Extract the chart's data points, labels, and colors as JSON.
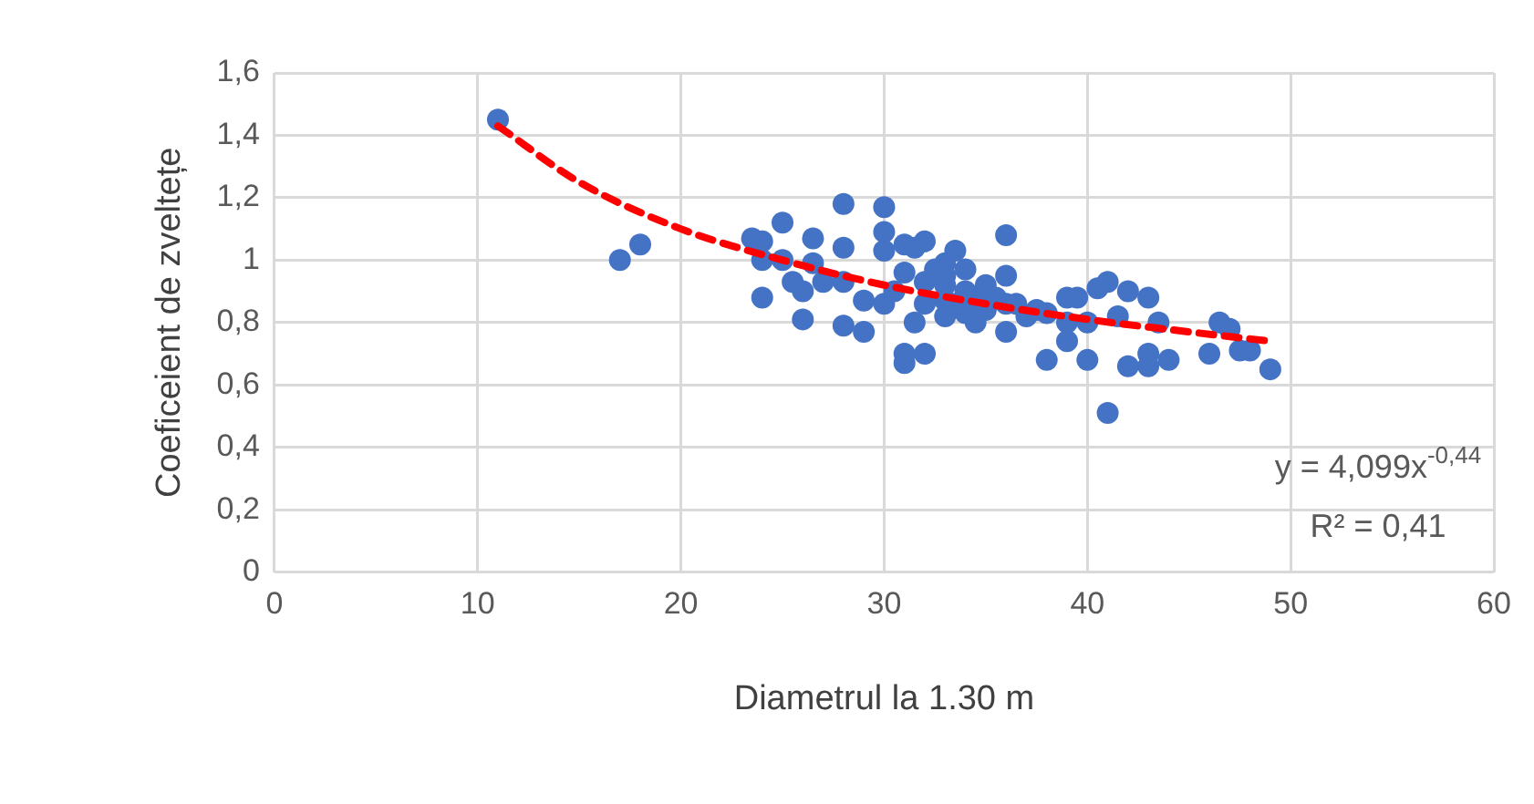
{
  "chart_data": {
    "type": "scatter",
    "xlabel": "Diametrul la 1.30 m",
    "ylabel": "Coeficeient de zveltețe",
    "xlim": [
      0,
      60
    ],
    "xticks": [
      0,
      10,
      20,
      30,
      40,
      50,
      60
    ],
    "ylim": [
      0,
      1.6
    ],
    "yticks": [
      0,
      {
        "value": 0.2,
        "label": "0,2"
      },
      {
        "value": 0.4,
        "label": "0,4"
      },
      {
        "value": 0.6,
        "label": "0,6"
      },
      {
        "value": 0.8,
        "label": "0,8"
      },
      1,
      {
        "value": 1.2,
        "label": "1,2"
      },
      {
        "value": 1.4,
        "label": "1,4"
      },
      {
        "value": 1.6,
        "label": "1,6"
      }
    ],
    "grid": true,
    "marker": "circle",
    "annotations": [
      "y = 4,099x$^{-0,44}$",
      "R² = 0,41"
    ],
    "series": [
      {
        "type": "scatter",
        "color": "#4472c4",
        "x": [
          11,
          17,
          18,
          23.5,
          24,
          24,
          24,
          25,
          25,
          25.5,
          26,
          26,
          26.5,
          26.5,
          27,
          28,
          28,
          28,
          28,
          29,
          29,
          30,
          30,
          30,
          30,
          31,
          31,
          31,
          31,
          31.5,
          32,
          32,
          32,
          32,
          33,
          33,
          33,
          33,
          33.5,
          33.5,
          34,
          34.5,
          34.5,
          36,
          36,
          36,
          36,
          36.5,
          38,
          38,
          39,
          39,
          39,
          39.5,
          40,
          40,
          40.5,
          41,
          41,
          41.5,
          42,
          42,
          43,
          43,
          43,
          43.5,
          44,
          46,
          46.5,
          47,
          47.5,
          48,
          49,
          33,
          34,
          35,
          35,
          34,
          32.5,
          31.5,
          30.5,
          35.5,
          37,
          37.5
        ],
        "values": [
          1.45,
          1.0,
          1.05,
          1.07,
          1.06,
          1.0,
          0.88,
          1.12,
          1.0,
          0.93,
          0.9,
          0.81,
          1.07,
          0.99,
          0.93,
          1.18,
          1.04,
          0.93,
          0.79,
          0.87,
          0.77,
          1.17,
          1.09,
          1.03,
          0.86,
          1.05,
          0.96,
          0.7,
          0.67,
          1.04,
          0.7,
          0.86,
          0.93,
          1.06,
          0.99,
          0.87,
          0.82,
          0.95,
          1.03,
          0.86,
          0.97,
          0.88,
          0.8,
          1.08,
          0.95,
          0.86,
          0.77,
          0.86,
          0.83,
          0.68,
          0.88,
          0.8,
          0.74,
          0.88,
          0.8,
          0.68,
          0.91,
          0.51,
          0.93,
          0.82,
          0.66,
          0.9,
          0.88,
          0.7,
          0.66,
          0.8,
          0.68,
          0.7,
          0.8,
          0.78,
          0.71,
          0.71,
          0.65,
          0.92,
          0.9,
          0.92,
          0.84,
          0.83,
          0.97,
          0.8,
          0.9,
          0.88,
          0.82,
          0.84
        ]
      },
      {
        "type": "line",
        "color": "#ff0000",
        "line_style": "dashed",
        "marker": "none",
        "x": [
          11,
          15,
          20,
          25,
          30,
          35,
          40,
          45,
          49
        ],
        "values": [
          1.43,
          1.25,
          1.1,
          1.0,
          0.92,
          0.86,
          0.81,
          0.77,
          0.74
        ]
      }
    ]
  }
}
